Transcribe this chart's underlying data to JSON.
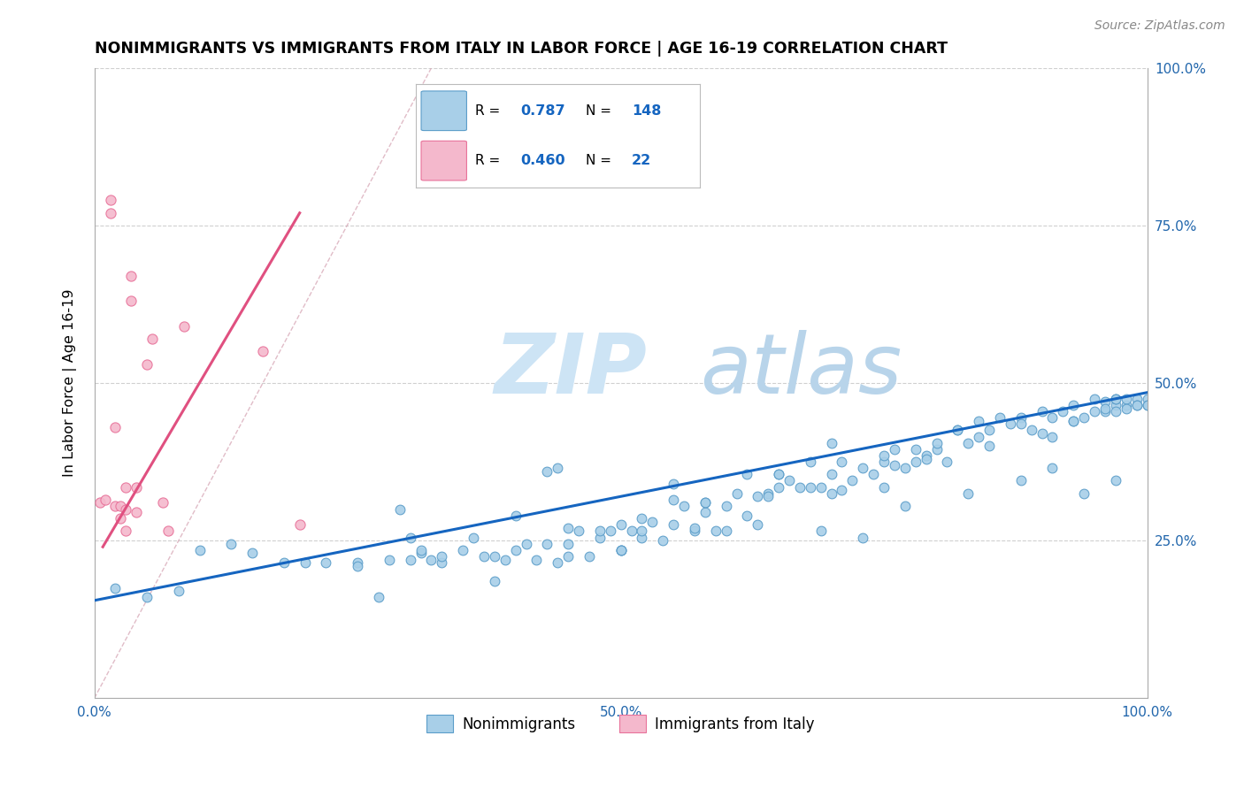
{
  "title": "NONIMMIGRANTS VS IMMIGRANTS FROM ITALY IN LABOR FORCE | AGE 16-19 CORRELATION CHART",
  "source": "Source: ZipAtlas.com",
  "ylabel": "In Labor Force | Age 16-19",
  "xlim": [
    0.0,
    1.0
  ],
  "ylim": [
    0.0,
    1.0
  ],
  "xtick_positions": [
    0.0,
    0.25,
    0.5,
    0.75,
    1.0
  ],
  "ytick_positions": [
    0.0,
    0.25,
    0.5,
    0.75,
    1.0
  ],
  "xticklabels": [
    "0.0%",
    "",
    "50.0%",
    "",
    "100.0%"
  ],
  "yticklabels_left": [
    "",
    "",
    "",
    "",
    ""
  ],
  "yticklabels_right": [
    "",
    "25.0%",
    "50.0%",
    "75.0%",
    "100.0%"
  ],
  "blue_color": "#a8cfe8",
  "blue_edge_color": "#5b9dc9",
  "pink_color": "#f4b8cc",
  "pink_edge_color": "#e8729a",
  "blue_line_color": "#1565c0",
  "pink_line_color": "#e05080",
  "refline_color": "#ccbbcc",
  "grid_color": "#d0d0d0",
  "legend_R_blue": "0.787",
  "legend_N_blue": "148",
  "legend_R_pink": "0.460",
  "legend_N_pink": "22",
  "blue_trend_x0": 0.0,
  "blue_trend_y0": 0.155,
  "blue_trend_x1": 1.0,
  "blue_trend_y1": 0.485,
  "pink_trend_x0": 0.008,
  "pink_trend_y0": 0.24,
  "pink_trend_x1": 0.195,
  "pink_trend_y1": 0.77,
  "refline_x0": 0.0,
  "refline_y0": 0.0,
  "refline_x1": 0.32,
  "refline_y1": 1.0,
  "blue_scatter_x": [
    0.02,
    0.05,
    0.08,
    0.1,
    0.13,
    0.15,
    0.18,
    0.2,
    0.22,
    0.25,
    0.27,
    0.28,
    0.3,
    0.3,
    0.31,
    0.32,
    0.33,
    0.35,
    0.36,
    0.37,
    0.38,
    0.39,
    0.4,
    0.41,
    0.42,
    0.43,
    0.44,
    0.45,
    0.45,
    0.46,
    0.47,
    0.48,
    0.49,
    0.5,
    0.5,
    0.51,
    0.52,
    0.53,
    0.54,
    0.55,
    0.55,
    0.56,
    0.57,
    0.58,
    0.59,
    0.6,
    0.6,
    0.61,
    0.62,
    0.63,
    0.64,
    0.65,
    0.65,
    0.66,
    0.67,
    0.68,
    0.69,
    0.7,
    0.7,
    0.71,
    0.72,
    0.73,
    0.74,
    0.75,
    0.75,
    0.76,
    0.77,
    0.78,
    0.79,
    0.8,
    0.8,
    0.81,
    0.82,
    0.83,
    0.84,
    0.85,
    0.86,
    0.87,
    0.88,
    0.89,
    0.9,
    0.91,
    0.92,
    0.93,
    0.94,
    0.95,
    0.96,
    0.97,
    0.97,
    0.97,
    0.98,
    0.98,
    0.99,
    0.99,
    1.0,
    1.0,
    0.25,
    0.29,
    0.31,
    0.33,
    0.38,
    0.43,
    0.48,
    0.5,
    0.52,
    0.55,
    0.58,
    0.62,
    0.65,
    0.68,
    0.7,
    0.75,
    0.78,
    0.82,
    0.84,
    0.88,
    0.91,
    0.93,
    0.95,
    0.96,
    0.97,
    0.98,
    0.99,
    1.0,
    0.44,
    0.5,
    0.57,
    0.63,
    0.69,
    0.73,
    0.77,
    0.83,
    0.88,
    0.91,
    0.94,
    0.97,
    0.4,
    0.45,
    0.52,
    0.58,
    0.64,
    0.71,
    0.76,
    0.79,
    0.85,
    0.9,
    0.93,
    0.96
  ],
  "blue_scatter_y": [
    0.175,
    0.16,
    0.17,
    0.235,
    0.245,
    0.23,
    0.215,
    0.215,
    0.215,
    0.215,
    0.16,
    0.22,
    0.255,
    0.22,
    0.23,
    0.22,
    0.215,
    0.235,
    0.255,
    0.225,
    0.225,
    0.22,
    0.235,
    0.245,
    0.22,
    0.245,
    0.215,
    0.225,
    0.245,
    0.265,
    0.225,
    0.255,
    0.265,
    0.275,
    0.235,
    0.265,
    0.255,
    0.28,
    0.25,
    0.275,
    0.315,
    0.305,
    0.265,
    0.295,
    0.265,
    0.305,
    0.265,
    0.325,
    0.355,
    0.32,
    0.325,
    0.335,
    0.355,
    0.345,
    0.335,
    0.375,
    0.335,
    0.355,
    0.325,
    0.375,
    0.345,
    0.365,
    0.355,
    0.375,
    0.335,
    0.395,
    0.365,
    0.395,
    0.385,
    0.395,
    0.405,
    0.375,
    0.425,
    0.405,
    0.415,
    0.425,
    0.445,
    0.435,
    0.445,
    0.425,
    0.455,
    0.445,
    0.455,
    0.465,
    0.445,
    0.475,
    0.455,
    0.465,
    0.475,
    0.455,
    0.465,
    0.475,
    0.475,
    0.465,
    0.475,
    0.465,
    0.21,
    0.3,
    0.235,
    0.225,
    0.185,
    0.36,
    0.265,
    0.235,
    0.265,
    0.34,
    0.31,
    0.29,
    0.355,
    0.335,
    0.405,
    0.385,
    0.375,
    0.425,
    0.44,
    0.435,
    0.415,
    0.44,
    0.455,
    0.47,
    0.475,
    0.46,
    0.465,
    0.465,
    0.365,
    0.235,
    0.27,
    0.275,
    0.265,
    0.255,
    0.305,
    0.325,
    0.345,
    0.365,
    0.325,
    0.345,
    0.29,
    0.27,
    0.285,
    0.31,
    0.32,
    0.33,
    0.37,
    0.38,
    0.4,
    0.42,
    0.44,
    0.46
  ],
  "pink_scatter_x": [
    0.005,
    0.01,
    0.015,
    0.015,
    0.02,
    0.02,
    0.025,
    0.025,
    0.03,
    0.03,
    0.03,
    0.035,
    0.035,
    0.04,
    0.04,
    0.05,
    0.055,
    0.065,
    0.07,
    0.085,
    0.16,
    0.195
  ],
  "pink_scatter_y": [
    0.31,
    0.315,
    0.79,
    0.77,
    0.43,
    0.305,
    0.305,
    0.285,
    0.335,
    0.3,
    0.265,
    0.67,
    0.63,
    0.335,
    0.295,
    0.53,
    0.57,
    0.31,
    0.265,
    0.59,
    0.55,
    0.275
  ]
}
